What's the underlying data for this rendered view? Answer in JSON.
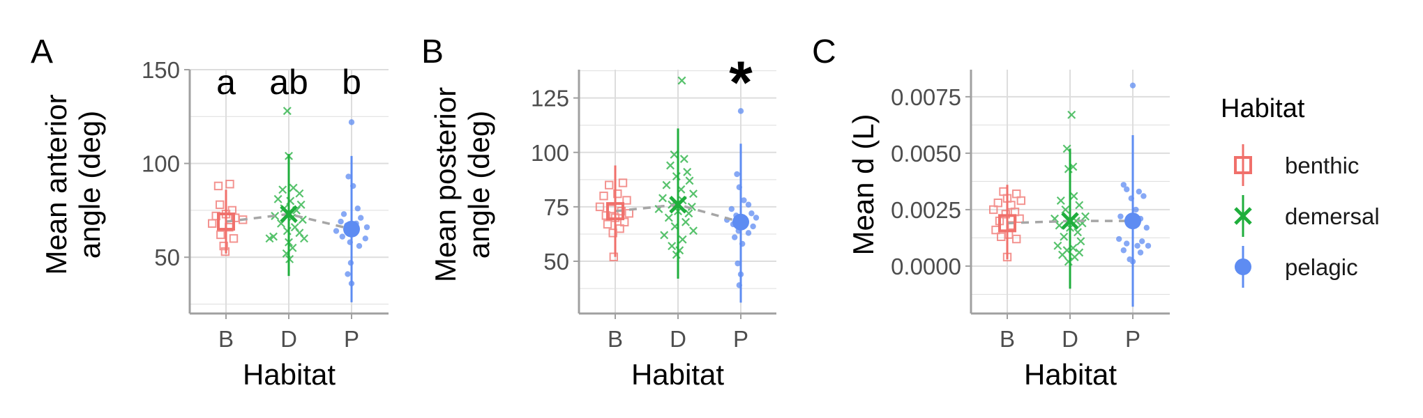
{
  "colors": {
    "benthic": "#F0706B",
    "demersal": "#1FAE3C",
    "pelagic": "#5E8CF2",
    "trend": "#A6A6A6",
    "grid": "#DDDDDD",
    "axis": "#A0A0A0",
    "tick_text": "#4D4D4D"
  },
  "legend": {
    "title": "Habitat",
    "items": [
      {
        "key": "benthic",
        "label": "benthic",
        "shape": "square"
      },
      {
        "key": "demersal",
        "label": "demersal",
        "shape": "cross"
      },
      {
        "key": "pelagic",
        "label": "pelagic",
        "shape": "circle"
      }
    ]
  },
  "chart_data": [
    {
      "type": "scatter",
      "panel_label": "A",
      "xlabel": "Habitat",
      "ylabel": [
        "Mean anterior",
        "angle (deg)"
      ],
      "categories": [
        "B",
        "D",
        "P"
      ],
      "ylim": [
        20,
        150
      ],
      "yticks": [
        50,
        100,
        150
      ],
      "grid": true,
      "annotations": [
        "a",
        "ab",
        "b"
      ],
      "series": [
        {
          "name": "benthic",
          "mean": 69,
          "lower": 52,
          "upper": 86,
          "points": [
            [
              -0.1,
              88
            ],
            [
              0.05,
              89
            ],
            [
              -0.08,
              78
            ],
            [
              0.08,
              75
            ],
            [
              -0.13,
              72
            ],
            [
              0.0,
              73
            ],
            [
              0.12,
              71
            ],
            [
              0.22,
              70
            ],
            [
              -0.18,
              68
            ],
            [
              0.04,
              66
            ],
            [
              -0.07,
              62
            ],
            [
              0.1,
              60
            ],
            [
              -0.03,
              56
            ],
            [
              -0.01,
              53
            ]
          ]
        },
        {
          "name": "demersal",
          "mean": 73,
          "lower": 40,
          "upper": 105,
          "points": [
            [
              -0.02,
              128
            ],
            [
              0.0,
              104
            ],
            [
              -0.08,
              86
            ],
            [
              0.06,
              87
            ],
            [
              0.14,
              84
            ],
            [
              -0.14,
              81
            ],
            [
              0.02,
              80
            ],
            [
              0.16,
              78
            ],
            [
              -0.06,
              76
            ],
            [
              0.1,
              75
            ],
            [
              -0.18,
              72
            ],
            [
              0.04,
              71
            ],
            [
              0.18,
              70
            ],
            [
              -0.1,
              68
            ],
            [
              0.08,
              66
            ],
            [
              -0.02,
              64
            ],
            [
              0.14,
              63
            ],
            [
              -0.2,
              61
            ],
            [
              -0.25,
              60
            ],
            [
              0.2,
              60
            ],
            [
              0.0,
              58
            ],
            [
              0.05,
              55
            ],
            [
              -0.03,
              52
            ],
            [
              0.01,
              49
            ]
          ]
        },
        {
          "name": "pelagic",
          "mean": 65,
          "lower": 26,
          "upper": 104,
          "points": [
            [
              0.0,
              122
            ],
            [
              -0.04,
              93
            ],
            [
              0.02,
              88
            ],
            [
              0.08,
              76
            ],
            [
              -0.1,
              73
            ],
            [
              0.12,
              71
            ],
            [
              -0.14,
              69
            ],
            [
              0.06,
              68
            ],
            [
              -0.06,
              67
            ],
            [
              0.2,
              66
            ],
            [
              -0.2,
              64
            ],
            [
              0.04,
              63
            ],
            [
              -0.12,
              61
            ],
            [
              0.18,
              60
            ],
            [
              -0.02,
              58
            ],
            [
              0.1,
              56
            ],
            [
              -0.01,
              47
            ],
            [
              -0.05,
              41
            ],
            [
              0.0,
              36
            ]
          ]
        }
      ]
    },
    {
      "type": "scatter",
      "panel_label": "B",
      "xlabel": "Habitat",
      "ylabel": [
        "Mean posterior",
        "angle (deg)"
      ],
      "categories": [
        "B",
        "D",
        "P"
      ],
      "ylim": [
        26,
        138
      ],
      "yticks": [
        50,
        75,
        100,
        125
      ],
      "grid": true,
      "annotations": [
        "",
        "",
        "*"
      ],
      "series": [
        {
          "name": "benthic",
          "mean": 73,
          "lower": 52,
          "upper": 94,
          "points": [
            [
              -0.08,
              85
            ],
            [
              0.1,
              86
            ],
            [
              -0.15,
              80
            ],
            [
              0.03,
              81
            ],
            [
              0.15,
              78
            ],
            [
              -0.2,
              75
            ],
            [
              -0.05,
              74
            ],
            [
              0.08,
              73
            ],
            [
              0.18,
              72
            ],
            [
              -0.12,
              71
            ],
            [
              0.0,
              70
            ],
            [
              0.12,
              68
            ],
            [
              -0.1,
              67
            ],
            [
              0.06,
              65
            ],
            [
              -0.03,
              63
            ],
            [
              -0.02,
              52
            ]
          ]
        },
        {
          "name": "demersal",
          "mean": 76,
          "lower": 42,
          "upper": 111,
          "points": [
            [
              0.05,
              133
            ],
            [
              -0.05,
              99
            ],
            [
              0.08,
              97
            ],
            [
              -0.1,
              94
            ],
            [
              0.12,
              91
            ],
            [
              -0.02,
              89
            ],
            [
              0.15,
              87
            ],
            [
              -0.15,
              85
            ],
            [
              0.04,
              83
            ],
            [
              0.2,
              81
            ],
            [
              -0.2,
              79
            ],
            [
              0.06,
              78
            ],
            [
              -0.08,
              76
            ],
            [
              0.18,
              75
            ],
            [
              -0.25,
              74
            ],
            [
              0.0,
              73
            ],
            [
              0.14,
              72
            ],
            [
              -0.12,
              70
            ],
            [
              0.1,
              68
            ],
            [
              -0.04,
              66
            ],
            [
              0.2,
              64
            ],
            [
              -0.18,
              62
            ],
            [
              0.06,
              60
            ],
            [
              -0.08,
              57
            ],
            [
              0.02,
              55
            ],
            [
              -0.02,
              53
            ]
          ]
        },
        {
          "name": "pelagic",
          "mean": 68,
          "lower": 31,
          "upper": 104,
          "points": [
            [
              0.0,
              119
            ],
            [
              -0.05,
              90
            ],
            [
              -0.02,
              84
            ],
            [
              0.04,
              78
            ],
            [
              0.1,
              76
            ],
            [
              -0.12,
              74
            ],
            [
              0.14,
              72
            ],
            [
              -0.06,
              71
            ],
            [
              0.2,
              70
            ],
            [
              -0.18,
              69
            ],
            [
              0.06,
              68
            ],
            [
              -0.1,
              67
            ],
            [
              0.16,
              66
            ],
            [
              -0.03,
              64
            ],
            [
              0.1,
              63
            ],
            [
              -0.08,
              61
            ],
            [
              0.02,
              58
            ],
            [
              -0.04,
              49
            ],
            [
              0.0,
              44
            ],
            [
              -0.02,
              39
            ]
          ]
        }
      ]
    },
    {
      "type": "scatter",
      "panel_label": "C",
      "xlabel": "Habitat",
      "ylabel": [
        "Mean d (L)"
      ],
      "categories": [
        "B",
        "D",
        "P"
      ],
      "ylim": [
        -0.0021,
        0.0087
      ],
      "yticks": [
        0.0,
        0.0025,
        0.005,
        0.0075
      ],
      "ytick_labels": [
        "0.0000",
        "0.0025",
        "0.0050",
        "0.0075"
      ],
      "grid": true,
      "annotations": [
        "",
        "",
        ""
      ],
      "series": [
        {
          "name": "benthic",
          "mean": 0.0019,
          "lower": 0.0003,
          "upper": 0.0036,
          "points": [
            [
              -0.05,
              0.0033
            ],
            [
              0.12,
              0.0032
            ],
            [
              0.0,
              0.003
            ],
            [
              0.18,
              0.0029
            ],
            [
              -0.12,
              0.0028
            ],
            [
              0.05,
              0.0027
            ],
            [
              -0.18,
              0.0025
            ],
            [
              0.1,
              0.0024
            ],
            [
              -0.02,
              0.0023
            ],
            [
              0.16,
              0.0021
            ],
            [
              -0.1,
              0.002
            ],
            [
              0.06,
              0.0018
            ],
            [
              -0.15,
              0.0016
            ],
            [
              0.02,
              0.0014
            ],
            [
              -0.08,
              0.0013
            ],
            [
              0.12,
              0.0012
            ],
            [
              0.0,
              0.0004
            ]
          ]
        },
        {
          "name": "demersal",
          "mean": 0.002,
          "lower": -0.001,
          "upper": 0.0052,
          "points": [
            [
              0.02,
              0.0067
            ],
            [
              -0.04,
              0.0052
            ],
            [
              0.04,
              0.0044
            ],
            [
              -0.02,
              0.0043
            ],
            [
              0.05,
              0.0031
            ],
            [
              -0.12,
              0.0029
            ],
            [
              0.12,
              0.0027
            ],
            [
              -0.06,
              0.0025
            ],
            [
              0.2,
              0.0022
            ],
            [
              -0.2,
              0.0021
            ],
            [
              0.08,
              0.002
            ],
            [
              0.16,
              0.0019
            ],
            [
              -0.14,
              0.0018
            ],
            [
              0.0,
              0.0017
            ],
            [
              0.1,
              0.0015
            ],
            [
              -0.08,
              0.0013
            ],
            [
              0.14,
              0.0011
            ],
            [
              -0.16,
              0.0009
            ],
            [
              0.04,
              0.0008
            ],
            [
              -0.04,
              0.0007
            ],
            [
              0.12,
              0.0006
            ],
            [
              -0.1,
              0.0005
            ],
            [
              0.06,
              0.0004
            ],
            [
              -0.02,
              0.0002
            ]
          ]
        },
        {
          "name": "pelagic",
          "mean": 0.002,
          "lower": -0.0018,
          "upper": 0.0058,
          "points": [
            [
              0.0,
              0.008
            ],
            [
              -0.12,
              0.0036
            ],
            [
              -0.08,
              0.0034
            ],
            [
              0.08,
              0.0033
            ],
            [
              0.14,
              0.0031
            ],
            [
              -0.02,
              0.003
            ],
            [
              0.04,
              0.0025
            ],
            [
              -0.16,
              0.0022
            ],
            [
              0.1,
              0.0021
            ],
            [
              -0.06,
              0.0019
            ],
            [
              0.18,
              0.0017
            ],
            [
              -0.18,
              0.0012
            ],
            [
              0.12,
              0.0011
            ],
            [
              -0.08,
              0.001
            ],
            [
              0.06,
              0.0009
            ],
            [
              0.2,
              0.0009
            ],
            [
              -0.12,
              0.0007
            ],
            [
              0.1,
              0.0006
            ],
            [
              -0.04,
              0.0003
            ],
            [
              0.0,
              0.0002
            ]
          ]
        }
      ]
    }
  ]
}
